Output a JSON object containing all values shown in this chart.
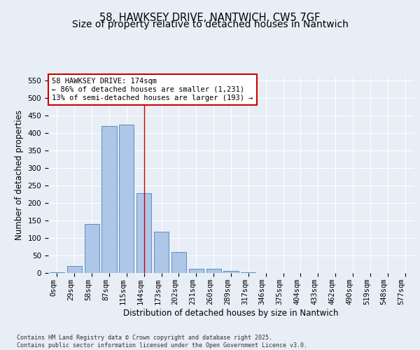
{
  "title": "58, HAWKSEY DRIVE, NANTWICH, CW5 7GF",
  "subtitle": "Size of property relative to detached houses in Nantwich",
  "xlabel": "Distribution of detached houses by size in Nantwich",
  "ylabel": "Number of detached properties",
  "footer_line1": "Contains HM Land Registry data © Crown copyright and database right 2025.",
  "footer_line2": "Contains public sector information licensed under the Open Government Licence v3.0.",
  "bin_labels": [
    "0sqm",
    "29sqm",
    "58sqm",
    "87sqm",
    "115sqm",
    "144sqm",
    "173sqm",
    "202sqm",
    "231sqm",
    "260sqm",
    "289sqm",
    "317sqm",
    "346sqm",
    "375sqm",
    "404sqm",
    "433sqm",
    "462sqm",
    "490sqm",
    "519sqm",
    "548sqm",
    "577sqm"
  ],
  "bar_values": [
    2,
    20,
    140,
    420,
    425,
    228,
    118,
    60,
    13,
    13,
    7,
    3,
    1,
    0,
    0,
    0,
    1,
    0,
    0,
    0,
    1
  ],
  "bar_color": "#aec6e8",
  "bar_edge_color": "#5a8fc2",
  "vline_x": 5,
  "annotation_text": "58 HAWKSEY DRIVE: 174sqm\n← 86% of detached houses are smaller (1,231)\n13% of semi-detached houses are larger (193) →",
  "annotation_box_color": "#ffffff",
  "annotation_box_edge_color": "#cc0000",
  "vline_color": "#cc0000",
  "ylim": [
    0,
    560
  ],
  "yticks": [
    0,
    50,
    100,
    150,
    200,
    250,
    300,
    350,
    400,
    450,
    500,
    550
  ],
  "background_color": "#e8eef5",
  "title_fontsize": 10.5,
  "axis_label_fontsize": 8.5,
  "tick_fontsize": 7.5,
  "annotation_fontsize": 7.5,
  "footer_fontsize": 6.0
}
